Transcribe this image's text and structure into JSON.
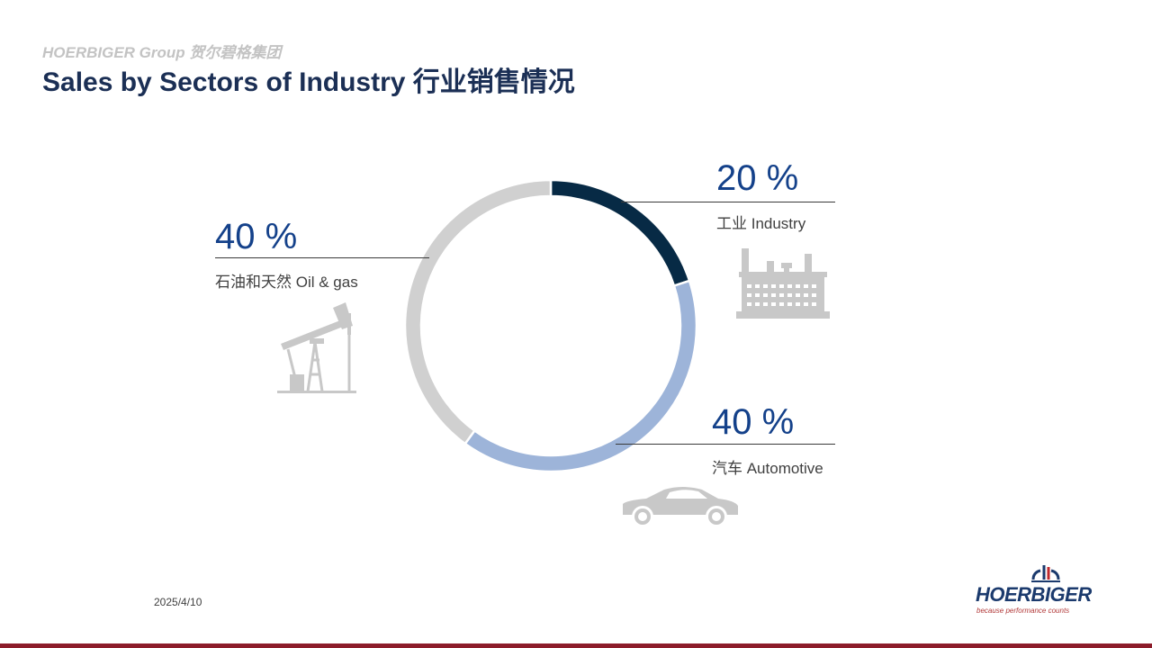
{
  "header": {
    "group": "HOERBIGER Group 贺尔碧格集团",
    "title": "Sales by Sectors of Industry 行业销售情况"
  },
  "chart_data": {
    "type": "pie",
    "donut": true,
    "categories": [
      "工业 Industry",
      "汽车 Automotive",
      "石油和天然 Oil & gas"
    ],
    "values": [
      20,
      40,
      40
    ],
    "value_labels": [
      "20 %",
      "40 %",
      "40 %"
    ],
    "colors": [
      "#072a45",
      "#9db4d9",
      "#d0d0d0"
    ],
    "start_angle": "12 o'clock",
    "direction": "clockwise",
    "legend": "none"
  },
  "icons": {
    "industry": "factory-icon",
    "automotive": "car-icon",
    "oil_gas": "oil-pump-icon"
  },
  "footer": {
    "date": "2025/4/10",
    "logo_word": "HOERBIGER",
    "logo_tagline": "because performance counts"
  }
}
